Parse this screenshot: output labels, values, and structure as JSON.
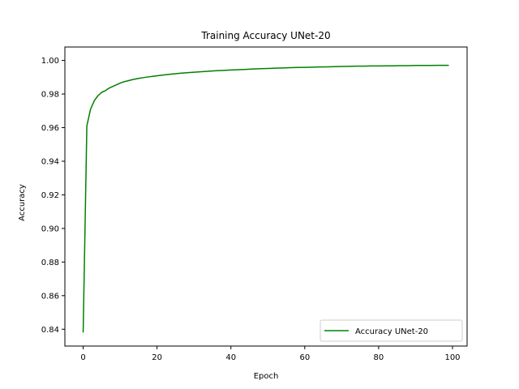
{
  "chart_data": {
    "type": "line",
    "title": "Training Accuracy UNet-20",
    "xlabel": "Epoch",
    "ylabel": "Accuracy",
    "xlim": [
      -4.95,
      103.95
    ],
    "ylim": [
      0.83,
      1.008
    ],
    "xticks": [
      0,
      20,
      40,
      60,
      80,
      100
    ],
    "yticks": [
      0.84,
      0.86,
      0.88,
      0.9,
      0.92,
      0.94,
      0.96,
      0.98,
      1.0
    ],
    "ytick_labels": [
      "0.84",
      "0.86",
      "0.88",
      "0.90",
      "0.92",
      "0.94",
      "0.96",
      "0.98",
      "1.00"
    ],
    "grid": false,
    "legend_position": "lower-right",
    "series": [
      {
        "name": "Accuracy UNet-20",
        "color": "#008000",
        "x": [
          0,
          1,
          2,
          3,
          4,
          5,
          6,
          7,
          8,
          9,
          10,
          11,
          12,
          13,
          14,
          15,
          16,
          17,
          18,
          19,
          20,
          22,
          24,
          26,
          28,
          30,
          32,
          34,
          36,
          38,
          40,
          42,
          44,
          46,
          48,
          50,
          52,
          54,
          56,
          58,
          60,
          62,
          64,
          66,
          68,
          70,
          72,
          74,
          76,
          78,
          80,
          82,
          84,
          86,
          88,
          90,
          92,
          94,
          96,
          98,
          99
        ],
        "y": [
          0.838,
          0.961,
          0.971,
          0.976,
          0.979,
          0.981,
          0.982,
          0.9835,
          0.9845,
          0.9855,
          0.9865,
          0.9873,
          0.9878,
          0.9884,
          0.9889,
          0.9893,
          0.9897,
          0.99,
          0.9903,
          0.9906,
          0.9909,
          0.9914,
          0.9919,
          0.9923,
          0.9927,
          0.993,
          0.9933,
          0.9936,
          0.9939,
          0.9941,
          0.9943,
          0.9945,
          0.9947,
          0.9949,
          0.9951,
          0.9952,
          0.9954,
          0.9955,
          0.9957,
          0.9958,
          0.9959,
          0.996,
          0.9961,
          0.9962,
          0.9963,
          0.9964,
          0.9965,
          0.9966,
          0.9966,
          0.9967,
          0.9967,
          0.9968,
          0.9968,
          0.9969,
          0.9969,
          0.997,
          0.997,
          0.997,
          0.9971,
          0.9971,
          0.9971
        ]
      }
    ]
  }
}
